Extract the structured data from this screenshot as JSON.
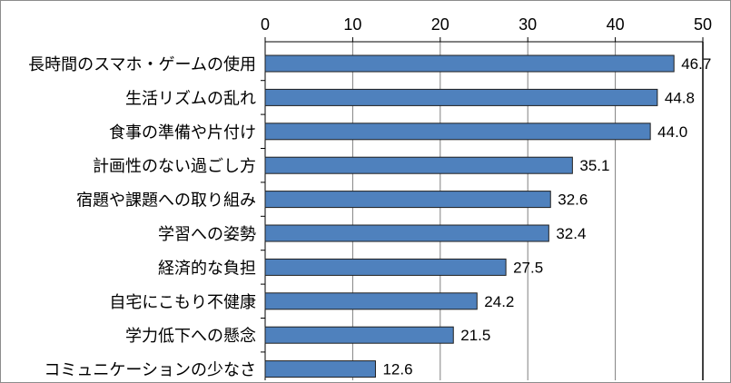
{
  "chart_data": {
    "type": "bar",
    "orientation": "horizontal",
    "categories": [
      "長時間のスマホ・ゲームの使用",
      "生活リズムの乱れ",
      "食事の準備や片付け",
      "計画性のない過ごし方",
      "宿題や課題への取り組み",
      "学習への姿勢",
      "経済的な負担",
      "自宅にこもり不健康",
      "学力低下への懸念",
      "コミュニケーションの少なさ"
    ],
    "values": [
      46.7,
      44.8,
      44.0,
      35.1,
      32.6,
      32.4,
      27.5,
      24.2,
      21.5,
      12.6
    ],
    "value_labels": [
      "46.7",
      "44.8",
      "44.0",
      "35.1",
      "32.6",
      "32.4",
      "27.5",
      "24.2",
      "21.5",
      "12.6"
    ],
    "x_ticks": [
      0,
      10,
      20,
      30,
      40,
      50
    ],
    "xlim": [
      0,
      50
    ],
    "xaxis_position": "top",
    "grid": true,
    "legend": false,
    "title": "",
    "xlabel": "",
    "ylabel": "",
    "colors": {
      "bar_fill": "#4f81bd",
      "bar_stroke": "#1f1f1f",
      "grid": "#808080",
      "axis": "#000000",
      "text": "#000000"
    }
  }
}
